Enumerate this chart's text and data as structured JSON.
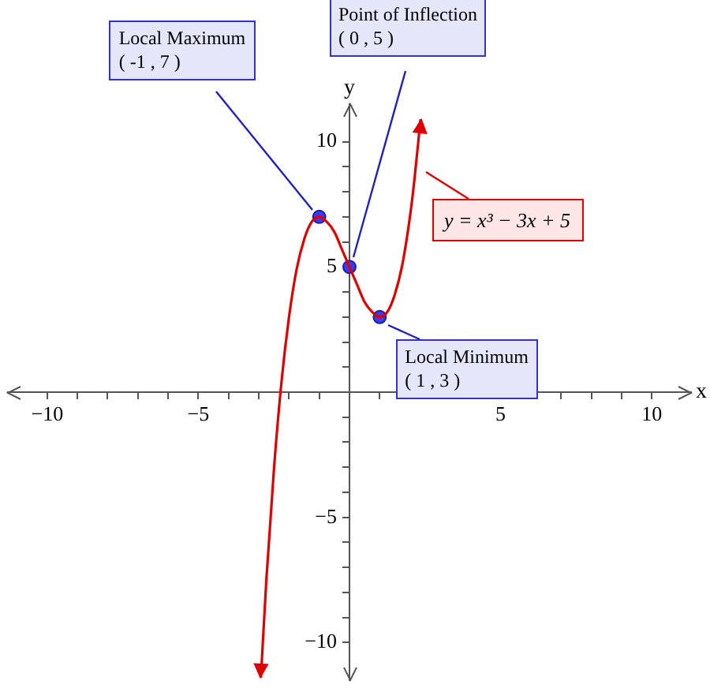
{
  "chart_data": {
    "type": "line",
    "xlabel": "x",
    "ylabel": "y",
    "xlim": [
      -11.3,
      11.3
    ],
    "ylim": [
      -11.5,
      11.5
    ],
    "xticks": [
      {
        "value": -10,
        "label": "−10"
      },
      {
        "value": -9,
        "label": null
      },
      {
        "value": -8,
        "label": null
      },
      {
        "value": -7,
        "label": null
      },
      {
        "value": -6,
        "label": null
      },
      {
        "value": -5,
        "label": "−5"
      },
      {
        "value": -4,
        "label": null
      },
      {
        "value": -3,
        "label": null
      },
      {
        "value": -2,
        "label": null
      },
      {
        "value": -1,
        "label": null
      },
      {
        "value": 0,
        "label": null
      },
      {
        "value": 1,
        "label": null
      },
      {
        "value": 2,
        "label": null
      },
      {
        "value": 3,
        "label": null
      },
      {
        "value": 4,
        "label": null
      },
      5,
      {
        "value": 6,
        "label": null
      },
      {
        "value": 7,
        "label": null
      },
      {
        "value": 8,
        "label": null
      },
      {
        "value": 9,
        "label": null
      },
      10
    ],
    "yticks": [
      {
        "value": -10,
        "label": "−10"
      },
      {
        "value": -9,
        "label": null
      },
      {
        "value": -8,
        "label": null
      },
      {
        "value": -7,
        "label": null
      },
      {
        "value": -6,
        "label": null
      },
      {
        "value": -5,
        "label": "−5"
      },
      {
        "value": -4,
        "label": null
      },
      {
        "value": -3,
        "label": null
      },
      {
        "value": -2,
        "label": null
      },
      {
        "value": -1,
        "label": null
      },
      {
        "value": 0,
        "label": null
      },
      {
        "value": 1,
        "label": null
      },
      {
        "value": 2,
        "label": null
      },
      {
        "value": 3,
        "label": null
      },
      {
        "value": 4,
        "label": null
      },
      5,
      {
        "value": 6,
        "label": null
      },
      {
        "value": 7,
        "label": null
      },
      {
        "value": 8,
        "label": null
      },
      {
        "value": 9,
        "label": null
      },
      10
    ],
    "series": [
      {
        "type": "line",
        "name": "y = x³ − 3x + 5",
        "color": "#e00000",
        "x": [
          -2.93,
          -2.75,
          -2.5,
          -2.25,
          -2,
          -1.75,
          -1.5,
          -1.25,
          -1,
          -0.75,
          -0.5,
          -0.25,
          0,
          0.25,
          0.5,
          0.75,
          1,
          1.25,
          1.5,
          1.75,
          2,
          2.15,
          2.35
        ],
        "values": [
          -11.4,
          -7.5,
          -3.1,
          0.4,
          3,
          4.9,
          6.1,
          6.8,
          7,
          6.8,
          6.4,
          5.7,
          5,
          4.3,
          3.6,
          3.2,
          3,
          3.2,
          3.9,
          5.1,
          7,
          8.5,
          10.9
        ]
      },
      {
        "type": "scatter",
        "color": "#3b3bf0",
        "marker": "circle",
        "x": [
          -1,
          0,
          1
        ],
        "values": [
          7,
          5,
          3
        ]
      }
    ],
    "annotations": [
      {
        "text": "Local Maximum\n( -1 , 7 )",
        "x": -1,
        "y": 7
      },
      {
        "text": "Point of Inflection\n( 0 , 5 )",
        "x": 0,
        "y": 5
      },
      {
        "text": "Local Minimum\n( 1 , 3 )",
        "x": 1,
        "y": 3
      }
    ]
  }
}
